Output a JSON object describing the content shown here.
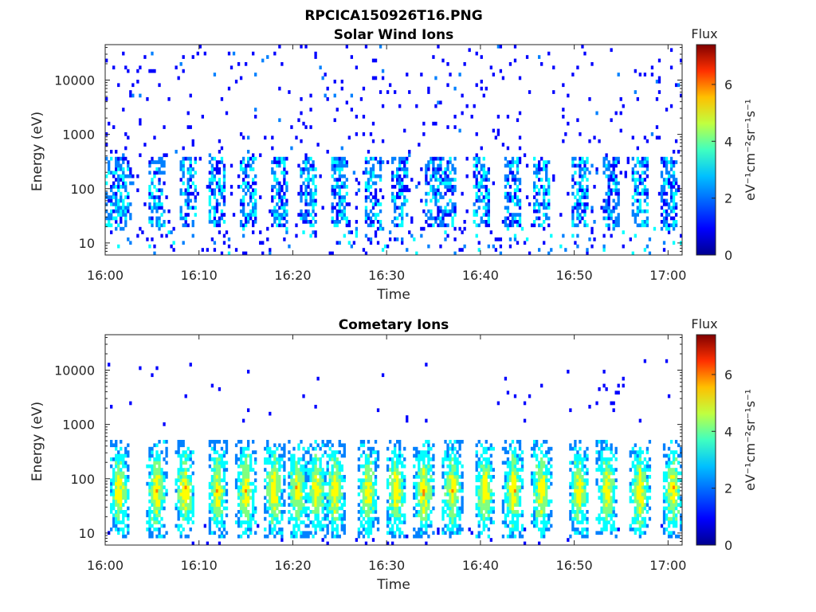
{
  "figure_title": "RPCICA150926T16.PNG",
  "colormap": [
    "#00008f",
    "#0000ff",
    "#0080ff",
    "#00ffff",
    "#80ff80",
    "#ffff00",
    "#ff8000",
    "#ff0000",
    "#800000"
  ],
  "chart_data": [
    {
      "type": "heatmap",
      "title": "Solar Wind Ions",
      "xlabel": "Time",
      "ylabel": "Energy (eV)",
      "yscale": "log",
      "ylim": [
        6,
        45000
      ],
      "x_tick_labels": [
        "16:00",
        "16:10",
        "16:20",
        "16:30",
        "16:40",
        "16:50",
        "17:00"
      ],
      "x_tick_minutes": [
        0,
        10,
        20,
        30,
        40,
        50,
        60
      ],
      "xlim_minutes": [
        0,
        61.5
      ],
      "y_ticks": [
        10,
        100,
        1000,
        10000
      ],
      "y_tick_labels": [
        "10",
        "100",
        "1000",
        "10000"
      ],
      "colorbar": {
        "label": "Flux",
        "unit": "eV⁻¹cm⁻²sr⁻¹s⁻¹",
        "range": [
          0,
          7.4
        ],
        "ticks": [
          0,
          2,
          4,
          6
        ],
        "tick_labels": [
          "0",
          "2",
          "4",
          "6"
        ]
      },
      "bursts_minutes": [
        0.5,
        2,
        5.5,
        8.8,
        12,
        15.2,
        18.5,
        21.6,
        25,
        28.5,
        31.5,
        35,
        36.5,
        40,
        43.5,
        46.5,
        50.5,
        54,
        57,
        60
      ],
      "background_level": "sparse low-flux (0–2) across all energies",
      "burst_energy_range_eV": [
        20,
        400
      ],
      "burst_flux_range": [
        1,
        3
      ]
    },
    {
      "type": "heatmap",
      "title": "Cometary Ions",
      "xlabel": "Time",
      "ylabel": "Energy (eV)",
      "yscale": "log",
      "ylim": [
        6,
        45000
      ],
      "x_tick_labels": [
        "16:00",
        "16:10",
        "16:20",
        "16:30",
        "16:40",
        "16:50",
        "17:00"
      ],
      "x_tick_minutes": [
        0,
        10,
        20,
        30,
        40,
        50,
        60
      ],
      "xlim_minutes": [
        0,
        61.5
      ],
      "y_ticks": [
        10,
        100,
        1000,
        10000
      ],
      "y_tick_labels": [
        "10",
        "100",
        "1000",
        "10000"
      ],
      "colorbar": {
        "label": "Flux",
        "unit": "eV⁻¹cm⁻²sr⁻¹s⁻¹",
        "range": [
          0,
          7.4
        ],
        "ticks": [
          0,
          2,
          4,
          6
        ],
        "tick_labels": [
          "0",
          "2",
          "4",
          "6"
        ]
      },
      "bursts_minutes": [
        1.5,
        5.5,
        8.5,
        12,
        15,
        18,
        20.5,
        22.5,
        24.5,
        28,
        31,
        34,
        37,
        40.5,
        43.5,
        46.5,
        50.5,
        53.5,
        57,
        60.5
      ],
      "background_level": "sparse low-flux (0–1) above 1000 eV",
      "burst_energy_range_eV": [
        8,
        500
      ],
      "burst_peak_energy_eV": 60,
      "burst_flux_range": [
        2,
        5.2
      ]
    }
  ]
}
